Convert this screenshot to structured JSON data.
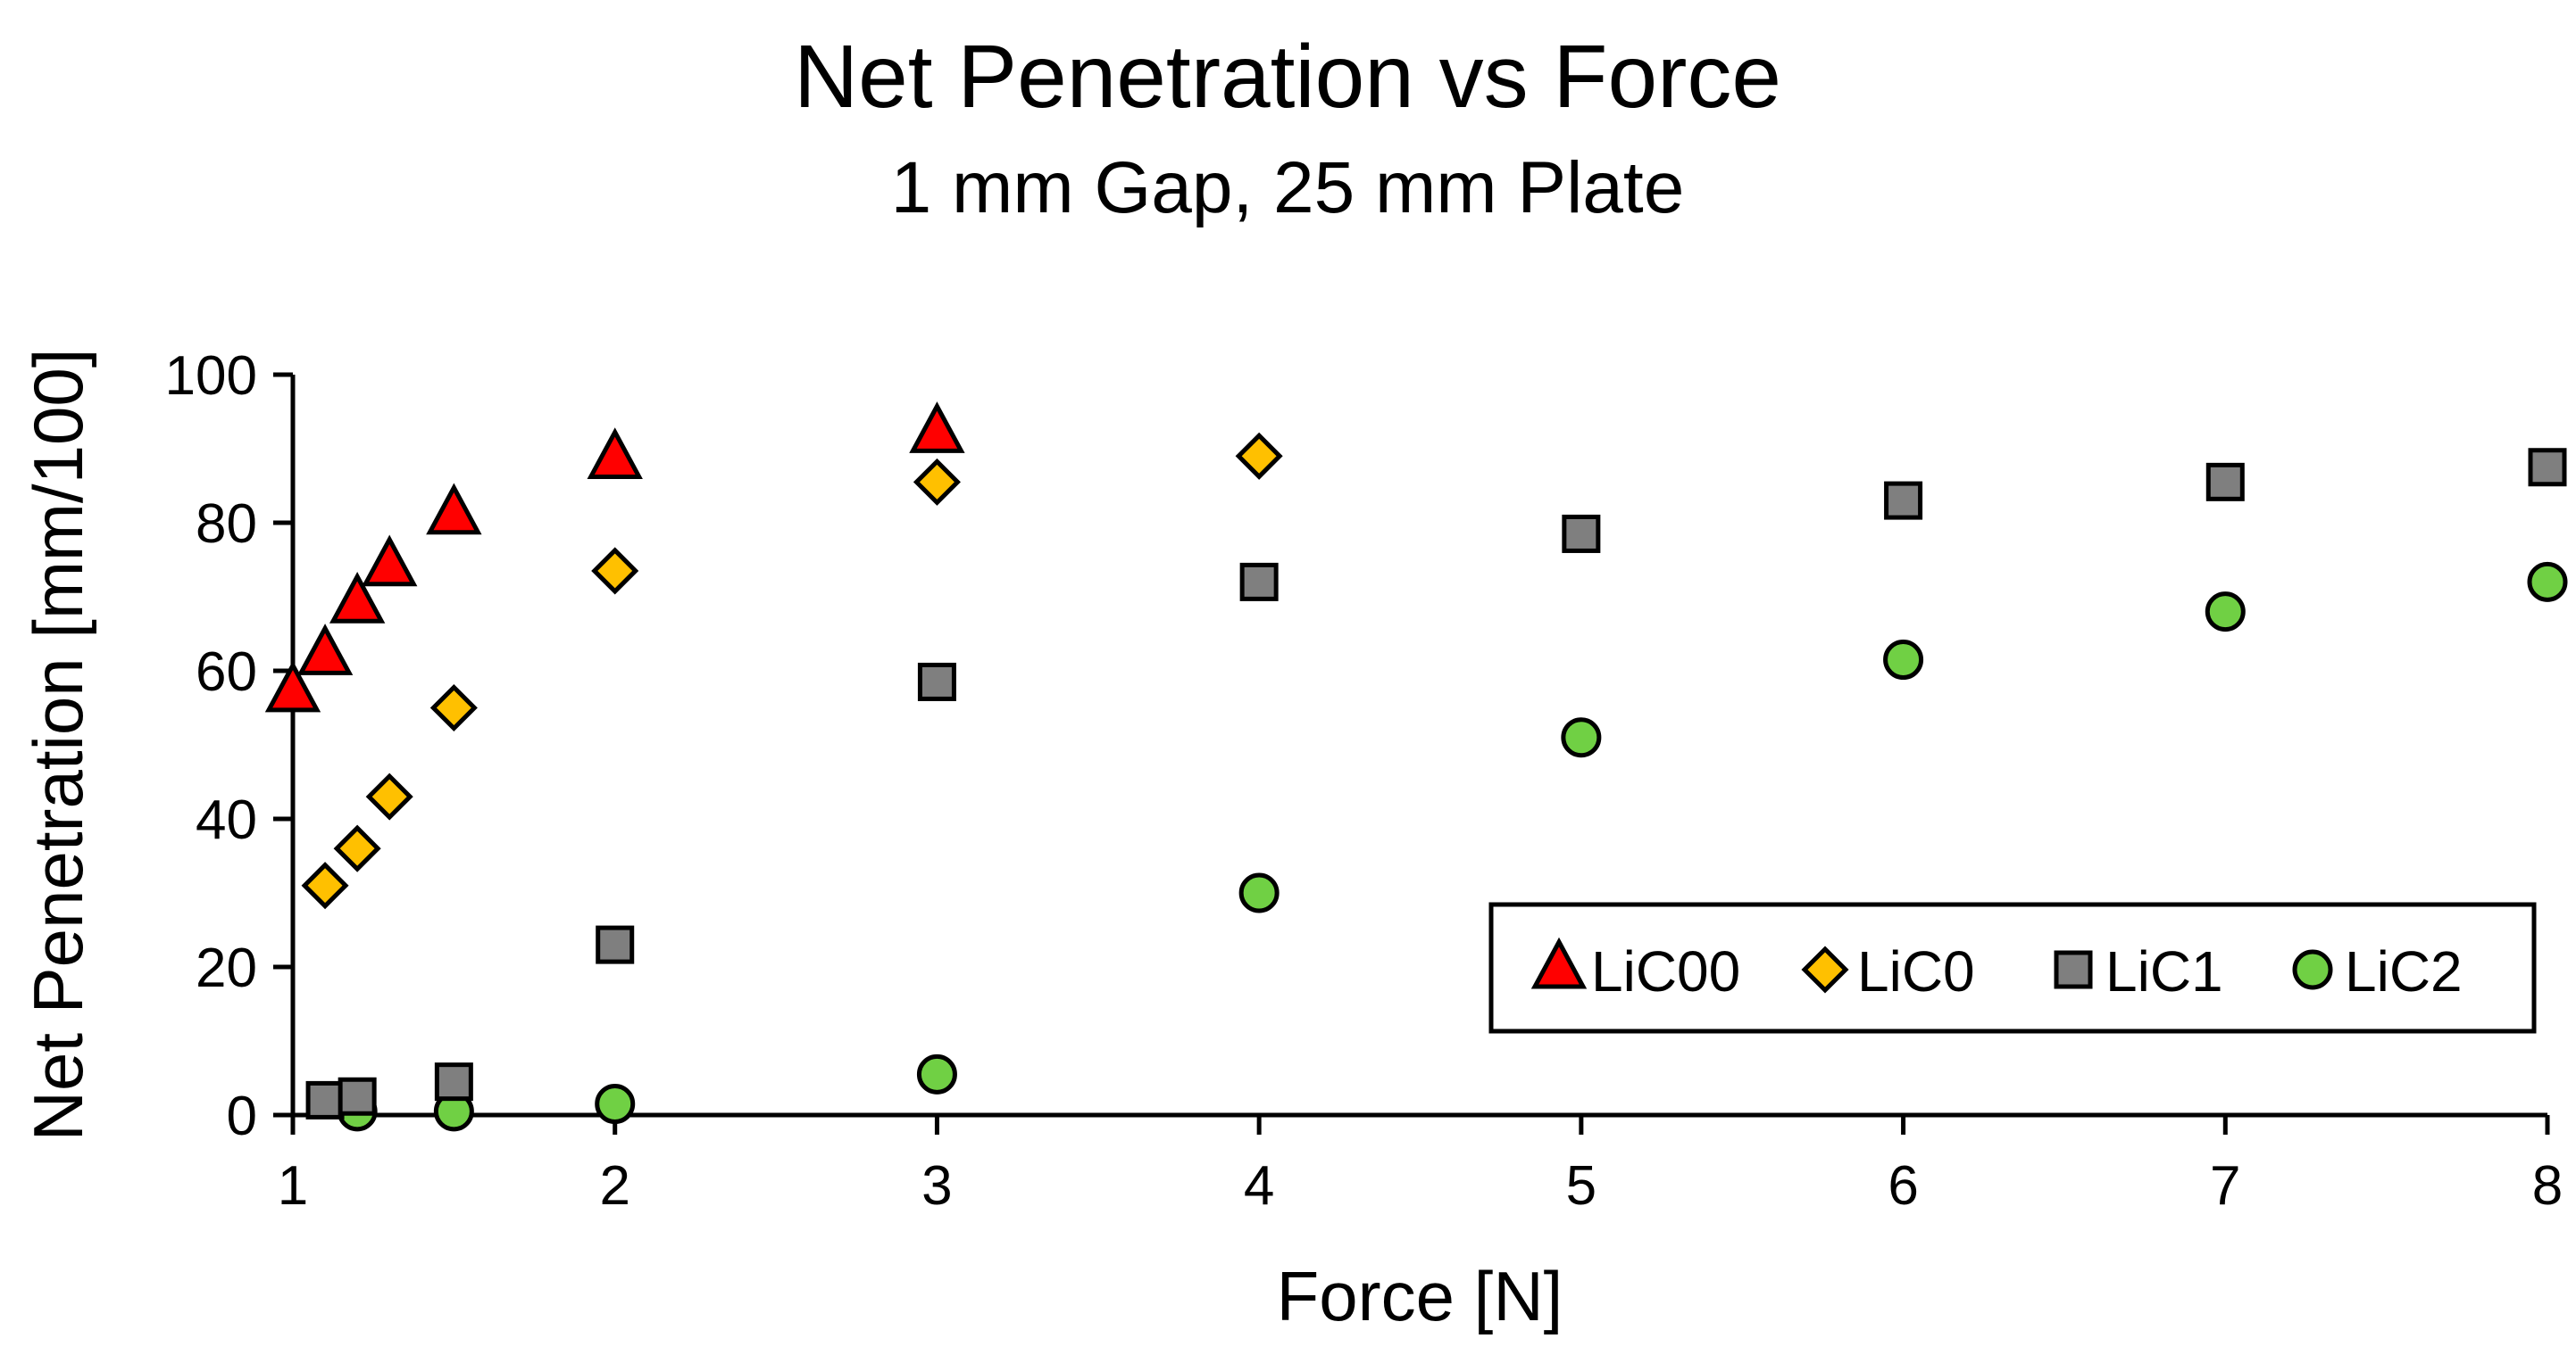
{
  "chart_data": {
    "type": "scatter",
    "title": "Net Penetration vs Force",
    "subtitle": "1 mm Gap, 25 mm Plate",
    "xlabel": "Force [N]",
    "ylabel": "Net Penetration [mm/100]",
    "xlim": [
      1,
      8
    ],
    "ylim": [
      0,
      100
    ],
    "xticks": [
      1,
      2,
      3,
      4,
      5,
      6,
      7,
      8
    ],
    "yticks": [
      0,
      20,
      40,
      60,
      80,
      100
    ],
    "xtick_labels": [
      "1",
      "2",
      "3",
      "4",
      "5",
      "6",
      "7",
      "8"
    ],
    "ytick_labels": [
      "0",
      "20",
      "40",
      "60",
      "80",
      "100"
    ],
    "grid": false,
    "legend_position": "bottom-right",
    "series": [
      {
        "name": "LiC00",
        "marker": "triangle",
        "color": "#ff0000",
        "x": [
          1.0,
          1.1,
          1.2,
          1.3,
          1.5,
          2,
          3
        ],
        "y": [
          57,
          62,
          69,
          74,
          81,
          88.5,
          92
        ]
      },
      {
        "name": "LiC0",
        "marker": "diamond",
        "color": "#ffc000",
        "x": [
          1.1,
          1.2,
          1.3,
          1.5,
          2,
          3,
          4
        ],
        "y": [
          31,
          36,
          43,
          55,
          73.5,
          85.5,
          89
        ]
      },
      {
        "name": "LiC1",
        "marker": "square",
        "color": "#7f7f7f",
        "x": [
          1.1,
          1.2,
          1.5,
          2,
          3,
          4,
          5,
          6,
          7,
          8
        ],
        "y": [
          2,
          2.5,
          4.5,
          23,
          58.5,
          72,
          78.5,
          83,
          85.5,
          87.5
        ]
      },
      {
        "name": "LiC2",
        "marker": "circle",
        "color": "#70d044",
        "x": [
          1.2,
          1.5,
          2,
          3,
          4,
          5,
          6,
          7,
          8
        ],
        "y": [
          0.5,
          0.5,
          1.5,
          5.5,
          30,
          51,
          61.5,
          68,
          72
        ]
      }
    ]
  }
}
